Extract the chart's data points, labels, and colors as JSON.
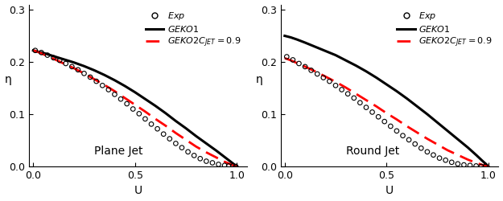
{
  "title_left": "Plane Jet",
  "title_right": "Round Jet",
  "xlabel": "U",
  "ylabel": "η",
  "xlim": [
    -0.02,
    1.05
  ],
  "ylim": [
    0.0,
    0.31
  ],
  "xticks": [
    0.0,
    0.5,
    1.0
  ],
  "yticks": [
    0.0,
    0.1,
    0.2,
    0.3
  ],
  "geko1_color": "#000000",
  "geko2_color": "#ff0000",
  "exp_color": "#000000",
  "plane_jet": {
    "geko1_U": [
      0.0,
      0.01,
      0.03,
      0.06,
      0.1,
      0.15,
      0.2,
      0.25,
      0.3,
      0.35,
      0.4,
      0.45,
      0.5,
      0.55,
      0.6,
      0.65,
      0.7,
      0.75,
      0.8,
      0.85,
      0.9,
      0.94,
      0.97,
      0.99,
      1.0
    ],
    "geko1_eta": [
      0.222,
      0.221,
      0.219,
      0.216,
      0.211,
      0.205,
      0.199,
      0.192,
      0.184,
      0.175,
      0.165,
      0.154,
      0.142,
      0.129,
      0.116,
      0.102,
      0.087,
      0.073,
      0.058,
      0.044,
      0.03,
      0.018,
      0.009,
      0.003,
      0.0
    ],
    "geko2_U": [
      0.0,
      0.01,
      0.03,
      0.06,
      0.1,
      0.15,
      0.2,
      0.25,
      0.3,
      0.35,
      0.4,
      0.45,
      0.5,
      0.55,
      0.6,
      0.65,
      0.7,
      0.75,
      0.8,
      0.85,
      0.9,
      0.94,
      0.97,
      0.99,
      1.0
    ],
    "geko2_eta": [
      0.222,
      0.221,
      0.218,
      0.213,
      0.206,
      0.197,
      0.188,
      0.178,
      0.167,
      0.156,
      0.144,
      0.131,
      0.118,
      0.105,
      0.091,
      0.078,
      0.064,
      0.051,
      0.038,
      0.027,
      0.017,
      0.009,
      0.004,
      0.001,
      0.0
    ],
    "exp_U": [
      0.01,
      0.04,
      0.07,
      0.1,
      0.13,
      0.16,
      0.19,
      0.22,
      0.25,
      0.28,
      0.31,
      0.34,
      0.37,
      0.4,
      0.43,
      0.46,
      0.49,
      0.52,
      0.55,
      0.58,
      0.61,
      0.64,
      0.67,
      0.7,
      0.73,
      0.76,
      0.79,
      0.82,
      0.85,
      0.88,
      0.91,
      0.94,
      0.96,
      0.98,
      0.995
    ],
    "exp_eta": [
      0.222,
      0.218,
      0.213,
      0.208,
      0.203,
      0.197,
      0.191,
      0.185,
      0.178,
      0.171,
      0.163,
      0.155,
      0.147,
      0.138,
      0.129,
      0.12,
      0.11,
      0.101,
      0.091,
      0.081,
      0.072,
      0.062,
      0.053,
      0.044,
      0.036,
      0.028,
      0.021,
      0.015,
      0.01,
      0.007,
      0.004,
      0.002,
      0.001,
      0.001,
      0.0
    ]
  },
  "round_jet": {
    "geko1_U": [
      0.0,
      0.01,
      0.03,
      0.06,
      0.1,
      0.15,
      0.2,
      0.25,
      0.3,
      0.35,
      0.4,
      0.45,
      0.5,
      0.55,
      0.6,
      0.65,
      0.7,
      0.75,
      0.8,
      0.85,
      0.9,
      0.94,
      0.97,
      0.99,
      1.0
    ],
    "geko1_eta": [
      0.25,
      0.249,
      0.247,
      0.243,
      0.237,
      0.229,
      0.221,
      0.213,
      0.203,
      0.193,
      0.182,
      0.17,
      0.157,
      0.144,
      0.13,
      0.115,
      0.1,
      0.084,
      0.068,
      0.052,
      0.036,
      0.022,
      0.011,
      0.004,
      0.0
    ],
    "geko2_U": [
      0.0,
      0.01,
      0.03,
      0.06,
      0.1,
      0.15,
      0.2,
      0.25,
      0.3,
      0.35,
      0.4,
      0.45,
      0.5,
      0.55,
      0.6,
      0.65,
      0.7,
      0.75,
      0.8,
      0.85,
      0.9,
      0.94,
      0.97,
      0.99,
      1.0
    ],
    "geko2_eta": [
      0.207,
      0.206,
      0.203,
      0.198,
      0.191,
      0.182,
      0.172,
      0.162,
      0.151,
      0.139,
      0.127,
      0.115,
      0.102,
      0.09,
      0.077,
      0.065,
      0.053,
      0.042,
      0.031,
      0.022,
      0.013,
      0.007,
      0.003,
      0.001,
      0.0
    ],
    "exp_U": [
      0.01,
      0.04,
      0.07,
      0.1,
      0.13,
      0.16,
      0.19,
      0.22,
      0.25,
      0.28,
      0.31,
      0.34,
      0.37,
      0.4,
      0.43,
      0.46,
      0.49,
      0.52,
      0.55,
      0.58,
      0.61,
      0.64,
      0.67,
      0.7,
      0.73,
      0.76,
      0.79,
      0.82,
      0.85,
      0.88,
      0.91,
      0.94,
      0.965,
      0.985
    ],
    "exp_eta": [
      0.21,
      0.204,
      0.197,
      0.191,
      0.184,
      0.177,
      0.17,
      0.163,
      0.155,
      0.147,
      0.139,
      0.131,
      0.122,
      0.113,
      0.104,
      0.095,
      0.086,
      0.077,
      0.068,
      0.059,
      0.051,
      0.043,
      0.035,
      0.028,
      0.022,
      0.016,
      0.012,
      0.008,
      0.005,
      0.003,
      0.002,
      0.001,
      0.0,
      0.0
    ]
  }
}
